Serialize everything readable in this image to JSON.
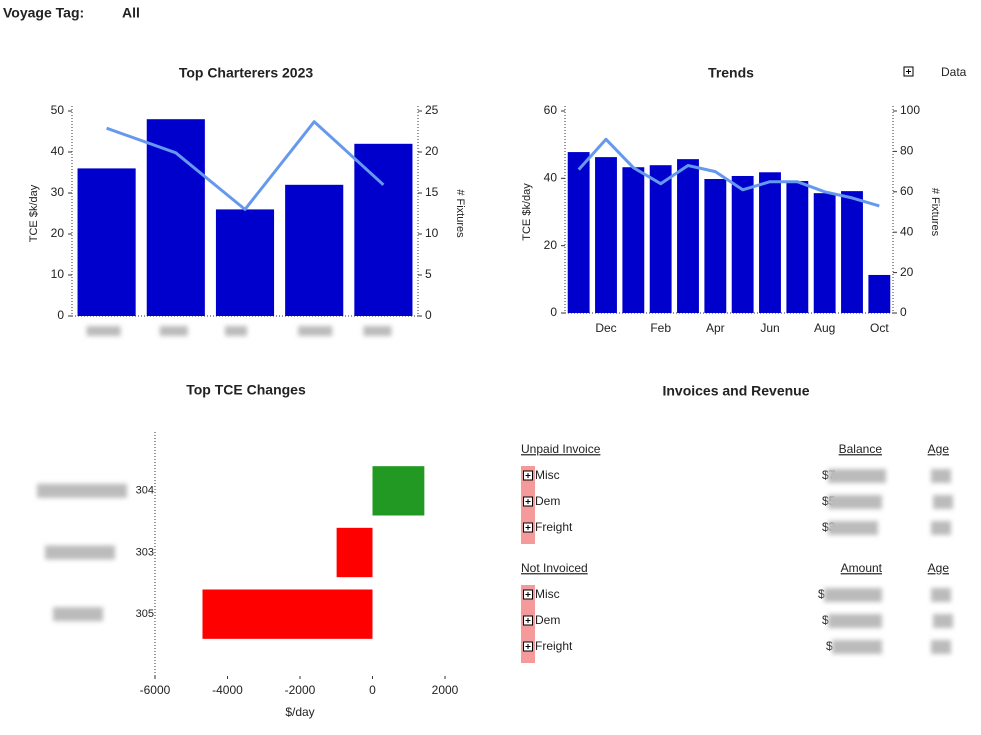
{
  "header": {
    "label": "Voyage Tag:",
    "value": "All",
    "data_button": "Data"
  },
  "chart_data": [
    {
      "type": "bar",
      "title": "Top Charterers 2023",
      "categories": [
        null,
        null,
        null,
        null,
        null
      ],
      "ylabel": "TCE $k/day",
      "y2label": "# Fixtures",
      "ylim": [
        0,
        50
      ],
      "yticks": [
        0,
        10,
        20,
        30,
        40,
        50
      ],
      "y2lim": [
        0,
        25
      ],
      "y2ticks": [
        0,
        5,
        10,
        15,
        20,
        25
      ],
      "series": [
        {
          "type": "bar",
          "color": "#0000cc",
          "values": [
            36,
            48,
            26,
            32,
            42
          ]
        },
        {
          "type": "line",
          "axis": "y2",
          "color": "#6699ee",
          "values": [
            22.9,
            19.9,
            13,
            23.7,
            16
          ]
        }
      ]
    },
    {
      "type": "bar",
      "title": "Trends",
      "categories": [
        null,
        "Dec",
        null,
        "Feb",
        null,
        "Apr",
        null,
        "Jun",
        null,
        "Aug",
        null,
        "Oct"
      ],
      "ylabel": "TCE $k/day",
      "y2label": "# Fixtures",
      "ylim": [
        0,
        60
      ],
      "yticks": [
        0,
        20,
        40,
        60
      ],
      "y2lim": [
        0,
        100
      ],
      "y2ticks": [
        0,
        20,
        40,
        60,
        80,
        100
      ],
      "series": [
        {
          "type": "bar",
          "color": "#0000cc",
          "values": [
            47.8,
            46.3,
            43.3,
            43.9,
            45.7,
            39.8,
            40.7,
            41.8,
            39.2,
            35.6,
            36.2,
            11.3
          ]
        },
        {
          "type": "line",
          "axis": "y2",
          "color": "#6699ee",
          "values": [
            71,
            86,
            72,
            64,
            73,
            70,
            61,
            65,
            65,
            60,
            57,
            53
          ]
        }
      ]
    },
    {
      "type": "barh",
      "title": "Top TCE Changes",
      "categories": [
        "304",
        "303",
        "305"
      ],
      "values": [
        1430,
        -990,
        -4690
      ],
      "colors": [
        "#229922",
        "#ff0000",
        "#ff0000"
      ],
      "xlim": [
        -6000,
        2000
      ],
      "xticks": [
        -6000,
        -4000,
        -2000,
        0,
        2000
      ],
      "xlabel": "$/day"
    }
  ],
  "invoices": {
    "title": "Invoices and Revenue",
    "sections": [
      {
        "headers": [
          "Unpaid Invoice",
          "Balance",
          "Age"
        ],
        "rows": [
          [
            "Misc",
            "$7"
          ],
          [
            "Dem",
            "$5"
          ],
          [
            "Freight",
            "$3"
          ]
        ]
      },
      {
        "headers": [
          "Not Invoiced",
          "Amount",
          "Age"
        ],
        "rows": [
          [
            "Misc",
            "$"
          ],
          [
            "Dem",
            "$"
          ],
          [
            "Freight",
            "$"
          ]
        ]
      }
    ]
  }
}
